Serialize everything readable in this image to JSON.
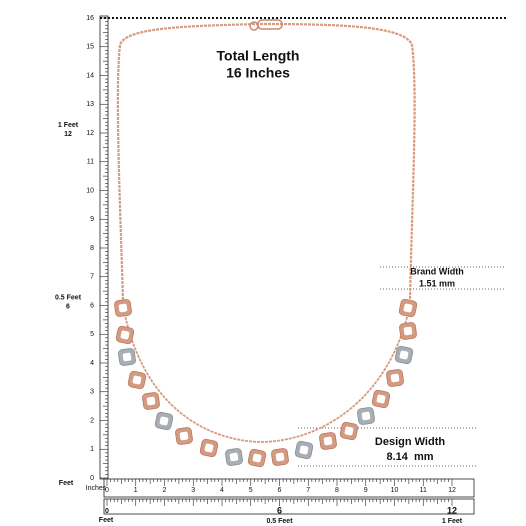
{
  "header": {
    "title": "Total Length",
    "subtitle": "16 Inches"
  },
  "callouts": [
    {
      "label": "Brand Width",
      "value": "1.51 mm"
    },
    {
      "label": "Design Width",
      "value": "8.14  mm"
    }
  ],
  "vertical_ruler": {
    "inch_labels": [
      "0",
      "1",
      "2",
      "3",
      "4",
      "5",
      "6",
      "7",
      "8",
      "9",
      "10",
      "11",
      "12",
      "13",
      "14",
      "15",
      "16"
    ],
    "feet_marks": [
      {
        "label": "0.5 Feet",
        "inch": "6"
      },
      {
        "label": "1 Feet",
        "inch": "12"
      }
    ],
    "zero_label": "Feet",
    "unit_label": "Inches"
  },
  "horizontal_ruler": {
    "inch_labels": [
      "0",
      "1",
      "2",
      "3",
      "4",
      "5",
      "6",
      "7",
      "8",
      "9",
      "10",
      "11",
      "12"
    ],
    "feet_labels": [
      {
        "label": "0",
        "inch": null
      },
      {
        "label": "0.5 Feet",
        "inch": "6"
      },
      {
        "label": "1 Feet",
        "inch": "12"
      }
    ],
    "zero_label": "Feet"
  }
}
